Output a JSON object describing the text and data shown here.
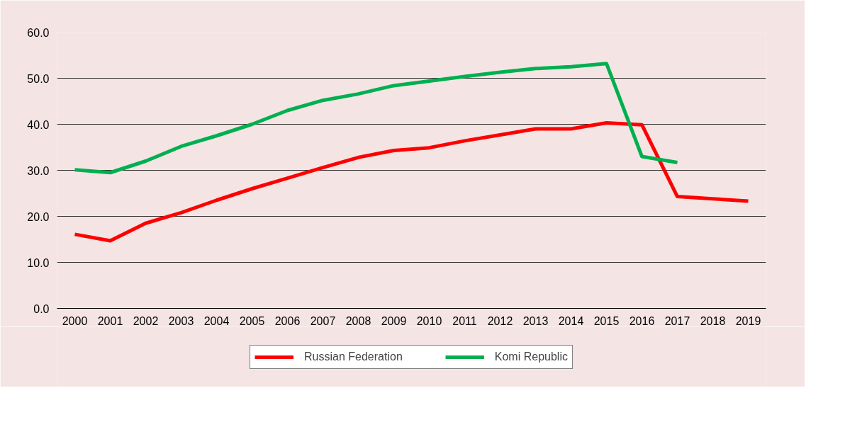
{
  "chart_data": {
    "type": "line",
    "categories": [
      "2000",
      "2001",
      "2002",
      "2003",
      "2004",
      "2005",
      "2006",
      "2007",
      "2008",
      "2009",
      "2010",
      "2011",
      "2012",
      "2013",
      "2014",
      "2015",
      "2016",
      "2017",
      "2018",
      "2019"
    ],
    "series": [
      {
        "name": "Russian Federation",
        "color": "#ff0000",
        "values": [
          16.1,
          14.7,
          18.5,
          20.8,
          23.5,
          26.0,
          28.3,
          30.6,
          32.8,
          34.3,
          34.9,
          36.4,
          37.7,
          39.0,
          39.0,
          40.3,
          39.9,
          24.3,
          23.8,
          23.3
        ]
      },
      {
        "name": "Komi Republic",
        "color": "#00b050",
        "values": [
          30.1,
          29.5,
          32.0,
          35.2,
          37.5,
          40.0,
          43.0,
          45.2,
          46.6,
          48.4,
          49.4,
          50.4,
          51.3,
          52.1,
          52.5,
          53.2,
          33.0,
          31.7,
          null,
          null
        ]
      }
    ],
    "ylim": [
      0,
      60
    ],
    "yticks": [
      {
        "value": 0,
        "label": "0.0"
      },
      {
        "value": 10,
        "label": "10.0"
      },
      {
        "value": 20,
        "label": "20.0"
      },
      {
        "value": 30,
        "label": "30.0"
      },
      {
        "value": 40,
        "label": "40.0"
      },
      {
        "value": 50,
        "label": "50.0"
      },
      {
        "value": 60,
        "label": "60.0"
      }
    ],
    "grid": "y",
    "legend": "bottom",
    "marker": "none",
    "line_style": "solid"
  }
}
